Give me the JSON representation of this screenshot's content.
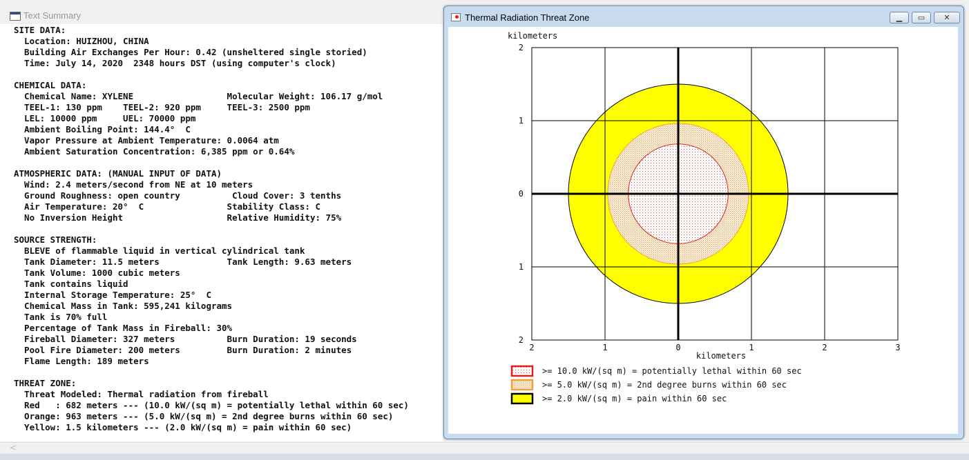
{
  "text_summary": {
    "title": "Text Summary",
    "lines": [
      "SITE DATA:",
      "  Location: HUIZHOU, CHINA",
      "  Building Air Exchanges Per Hour: 0.42 (unsheltered single storied)",
      "  Time: July 14, 2020  2348 hours DST (using computer's clock)",
      "",
      "CHEMICAL DATA:",
      "  Chemical Name: XYLENE                  Molecular Weight: 106.17 g/mol",
      "  TEEL-1: 130 ppm    TEEL-2: 920 ppm     TEEL-3: 2500 ppm",
      "  LEL: 10000 ppm     UEL: 70000 ppm",
      "  Ambient Boiling Point: 144.4°  C",
      "  Vapor Pressure at Ambient Temperature: 0.0064 atm",
      "  Ambient Saturation Concentration: 6,385 ppm or 0.64%",
      "",
      "ATMOSPHERIC DATA: (MANUAL INPUT OF DATA)",
      "  Wind: 2.4 meters/second from NE at 10 meters",
      "  Ground Roughness: open country          Cloud Cover: 3 tenths",
      "  Air Temperature: 20°  C                Stability Class: C",
      "  No Inversion Height                    Relative Humidity: 75%",
      "",
      "SOURCE STRENGTH:",
      "  BLEVE of flammable liquid in vertical cylindrical tank",
      "  Tank Diameter: 11.5 meters             Tank Length: 9.63 meters",
      "  Tank Volume: 1000 cubic meters",
      "  Tank contains liquid",
      "  Internal Storage Temperature: 25°  C",
      "  Chemical Mass in Tank: 595,241 kilograms",
      "  Tank is 70% full",
      "  Percentage of Tank Mass in Fireball: 30%",
      "  Fireball Diameter: 327 meters          Burn Duration: 19 seconds",
      "  Pool Fire Diameter: 200 meters         Burn Duration: 2 minutes",
      "  Flame Length: 189 meters",
      "",
      "THREAT ZONE:",
      "  Threat Modeled: Thermal radiation from fireball",
      "  Red   : 682 meters --- (10.0 kW/(sq m) = potentially lethal within 60 sec)",
      "  Orange: 963 meters --- (5.0 kW/(sq m) = 2nd degree burns within 60 sec)",
      "  Yellow: 1.5 kilometers --- (2.0 kW/(sq m) = pain within 60 sec)"
    ],
    "scroll_left_arrow": "<"
  },
  "threat_window": {
    "title": "Thermal Radiation Threat Zone",
    "min_glyph": "▁",
    "max_glyph": "▭",
    "close_glyph": "✕",
    "y_unit_label": "kilometers",
    "x_unit_label": "kilometers",
    "y_tick_labels": [
      "2",
      "1",
      "0",
      "1",
      "2"
    ],
    "x_tick_labels": [
      "2",
      "1",
      "0",
      "1",
      "2",
      "3"
    ],
    "x_range_km": [
      -2,
      3
    ],
    "y_range_km": [
      -2,
      2
    ],
    "zones": [
      {
        "name": "yellow",
        "radius_km": 1.5,
        "fill": "#ffff00",
        "stroke": "#000000",
        "legend": ">= 2.0 kW/(sq m) = pain within 60 sec"
      },
      {
        "name": "orange",
        "radius_km": 0.963,
        "fill": "#f7e6c6",
        "stroke": "#f2a23c",
        "legend": ">= 5.0 kW/(sq m) = 2nd degree burns within 60 sec"
      },
      {
        "name": "red",
        "radius_km": 0.682,
        "fill": "#fdeeee",
        "stroke": "#e02020",
        "legend": ">= 10.0 kW/(sq m) = potentially lethal within 60 sec"
      }
    ]
  }
}
